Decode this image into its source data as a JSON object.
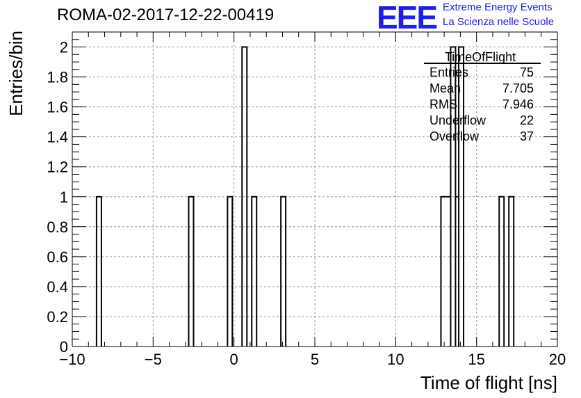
{
  "header": {
    "title": "ROMA-02-2017-12-22-00419",
    "logo_text": "EEE",
    "logo_line1": "Extreme Energy Events",
    "logo_line2": "La Scienza nelle Scuole",
    "logo_color": "#1f1fe6"
  },
  "stats_box": {
    "name": "TimeOfFlight",
    "rows": [
      {
        "label": "Entries",
        "value": "75"
      },
      {
        "label": "Mean",
        "value": "7.705"
      },
      {
        "label": "RMS",
        "value": "7.946"
      },
      {
        "label": "Underflow",
        "value": "22"
      },
      {
        "label": "Overflow",
        "value": "37"
      }
    ]
  },
  "chart_data": {
    "type": "histogram",
    "title": "ROMA-02-2017-12-22-00419",
    "xlabel": "Time of flight [ns]",
    "ylabel": "Entries/bin",
    "xlim": [
      -10,
      20
    ],
    "ylim": [
      0,
      2.1
    ],
    "bin_width": 0.3,
    "grid": true,
    "x_ticks": [
      -10,
      -5,
      0,
      5,
      10,
      15,
      20
    ],
    "x_tick_labels": [
      "−10",
      "−5",
      "0",
      "5",
      "10",
      "15",
      "20"
    ],
    "y_ticks": [
      0,
      0.2,
      0.4,
      0.6,
      0.8,
      1,
      1.2,
      1.4,
      1.6,
      1.8,
      2
    ],
    "y_tick_labels": [
      "0",
      "0.2",
      "0.4",
      "0.6",
      "0.8",
      "1",
      "1.2",
      "1.4",
      "1.6",
      "1.8",
      "2"
    ],
    "bins": [
      {
        "x0": -8.5,
        "x1": -8.2,
        "count": 1
      },
      {
        "x0": -2.8,
        "x1": -2.5,
        "count": 1
      },
      {
        "x0": -0.4,
        "x1": -0.1,
        "count": 1
      },
      {
        "x0": 0.5,
        "x1": 0.8,
        "count": 2
      },
      {
        "x0": 1.1,
        "x1": 1.4,
        "count": 1
      },
      {
        "x0": 2.9,
        "x1": 3.2,
        "count": 1
      },
      {
        "x0": 12.8,
        "x1": 13.4,
        "count": 1
      },
      {
        "x0": 13.4,
        "x1": 13.7,
        "count": 2
      },
      {
        "x0": 13.7,
        "x1": 13.9,
        "count": 1
      },
      {
        "x0": 13.9,
        "x1": 14.2,
        "count": 2
      },
      {
        "x0": 16.4,
        "x1": 16.7,
        "count": 1
      },
      {
        "x0": 17.0,
        "x1": 17.3,
        "count": 1
      }
    ]
  }
}
